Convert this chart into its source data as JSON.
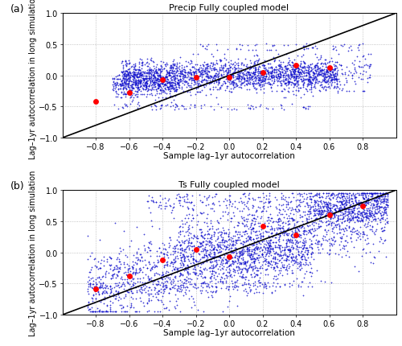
{
  "title_a": "Precip Fully coupled model",
  "title_b": "Ts Fully coupled model",
  "xlabel": "Sample lag–1yr autocorrelation",
  "ylabel": "Lag–1yr autocorrelation in long simulation",
  "label_a": "(a)",
  "label_b": "(b)",
  "xlim": [
    -1,
    1
  ],
  "ylim": [
    -1,
    1
  ],
  "xticks": [
    -0.8,
    -0.6,
    -0.4,
    -0.2,
    0,
    0.2,
    0.4,
    0.6,
    0.8
  ],
  "yticks": [
    -1,
    -0.5,
    0,
    0.5,
    1
  ],
  "blue_dot_color": "#1111cc",
  "red_dot_color": "#ff0000",
  "line_color": "#000000",
  "grid_color": "#aaaaaa",
  "background_color": "#ffffff",
  "dot_size_blue": 2,
  "dot_size_red": 25,
  "red_dots_a": [
    [
      -0.8,
      -0.42
    ],
    [
      -0.6,
      -0.27
    ],
    [
      -0.4,
      -0.07
    ],
    [
      -0.2,
      -0.03
    ],
    [
      0.0,
      -0.03
    ],
    [
      0.2,
      0.05
    ],
    [
      0.4,
      0.17
    ],
    [
      0.6,
      0.12
    ]
  ],
  "red_dots_b": [
    [
      -0.8,
      -0.58
    ],
    [
      -0.6,
      -0.38
    ],
    [
      -0.4,
      -0.12
    ],
    [
      -0.2,
      0.05
    ],
    [
      0.0,
      -0.07
    ],
    [
      0.2,
      0.42
    ],
    [
      0.4,
      0.28
    ],
    [
      0.6,
      0.6
    ],
    [
      0.8,
      0.75
    ]
  ]
}
